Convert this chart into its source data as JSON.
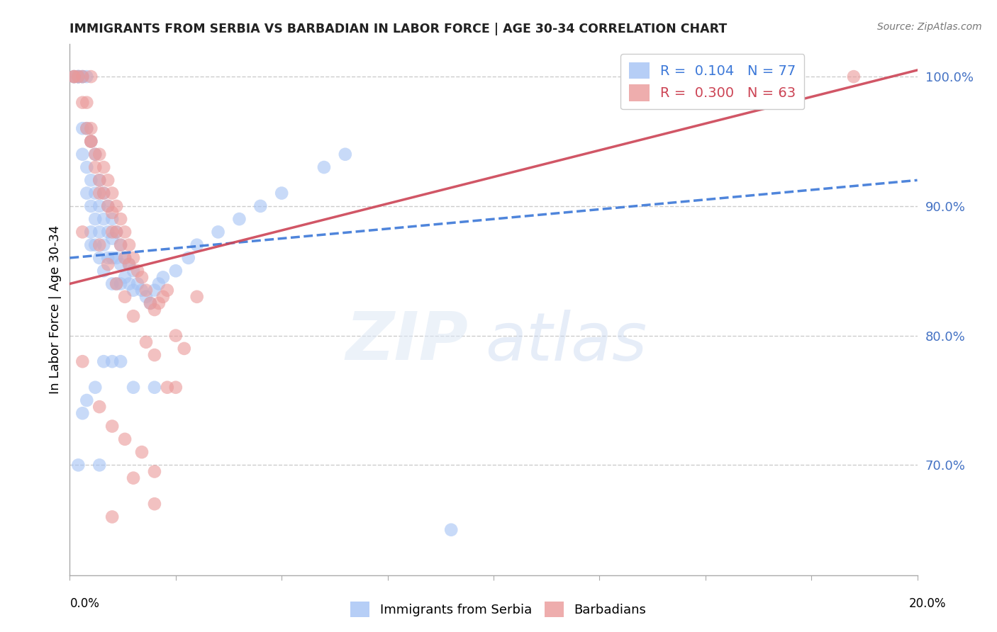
{
  "title": "IMMIGRANTS FROM SERBIA VS BARBADIAN IN LABOR FORCE | AGE 30-34 CORRELATION CHART",
  "source": "Source: ZipAtlas.com",
  "ylabel": "In Labor Force | Age 30-34",
  "right_ytick_labels": [
    "100.0%",
    "90.0%",
    "80.0%",
    "70.0%"
  ],
  "right_ytick_values": [
    1.0,
    0.9,
    0.8,
    0.7
  ],
  "serbia_R": 0.104,
  "serbia_N": 77,
  "barbadian_R": 0.3,
  "barbadian_N": 63,
  "serbia_color": "#a4c2f4",
  "barbadian_color": "#ea9999",
  "serbia_line_color": "#3c78d8",
  "barbadian_line_color": "#cc4455",
  "right_axis_color": "#4472c4",
  "watermark_zip": "ZIP",
  "watermark_atlas": "atlas",
  "xlim": [
    0.0,
    0.2
  ],
  "ylim": [
    0.615,
    1.025
  ],
  "serbia_x": [
    0.001,
    0.001,
    0.002,
    0.002,
    0.002,
    0.002,
    0.003,
    0.003,
    0.003,
    0.003,
    0.004,
    0.004,
    0.004,
    0.004,
    0.005,
    0.005,
    0.005,
    0.005,
    0.005,
    0.006,
    0.006,
    0.006,
    0.006,
    0.007,
    0.007,
    0.007,
    0.007,
    0.008,
    0.008,
    0.008,
    0.008,
    0.009,
    0.009,
    0.009,
    0.01,
    0.01,
    0.01,
    0.01,
    0.011,
    0.011,
    0.011,
    0.012,
    0.012,
    0.012,
    0.013,
    0.013,
    0.014,
    0.014,
    0.015,
    0.015,
    0.016,
    0.017,
    0.018,
    0.019,
    0.02,
    0.021,
    0.022,
    0.025,
    0.028,
    0.03,
    0.035,
    0.04,
    0.045,
    0.05,
    0.06,
    0.065,
    0.01,
    0.008,
    0.006,
    0.004,
    0.003,
    0.002,
    0.09,
    0.02,
    0.015,
    0.012,
    0.007
  ],
  "serbia_y": [
    1.0,
    1.0,
    1.0,
    1.0,
    1.0,
    1.0,
    1.0,
    1.0,
    0.96,
    0.94,
    1.0,
    0.96,
    0.93,
    0.91,
    0.95,
    0.92,
    0.9,
    0.88,
    0.87,
    0.94,
    0.91,
    0.89,
    0.87,
    0.92,
    0.9,
    0.88,
    0.86,
    0.91,
    0.89,
    0.87,
    0.85,
    0.9,
    0.88,
    0.86,
    0.89,
    0.875,
    0.86,
    0.84,
    0.88,
    0.86,
    0.84,
    0.87,
    0.855,
    0.84,
    0.86,
    0.845,
    0.855,
    0.84,
    0.85,
    0.835,
    0.84,
    0.835,
    0.83,
    0.825,
    0.835,
    0.84,
    0.845,
    0.85,
    0.86,
    0.87,
    0.88,
    0.89,
    0.9,
    0.91,
    0.93,
    0.94,
    0.78,
    0.78,
    0.76,
    0.75,
    0.74,
    0.7,
    0.65,
    0.76,
    0.76,
    0.78,
    0.7
  ],
  "barbadian_x": [
    0.001,
    0.001,
    0.002,
    0.003,
    0.003,
    0.004,
    0.004,
    0.005,
    0.005,
    0.005,
    0.006,
    0.006,
    0.007,
    0.007,
    0.007,
    0.008,
    0.008,
    0.009,
    0.009,
    0.01,
    0.01,
    0.01,
    0.011,
    0.011,
    0.012,
    0.012,
    0.013,
    0.013,
    0.014,
    0.014,
    0.015,
    0.016,
    0.017,
    0.018,
    0.019,
    0.02,
    0.021,
    0.022,
    0.023,
    0.025,
    0.027,
    0.03,
    0.005,
    0.003,
    0.007,
    0.009,
    0.011,
    0.013,
    0.015,
    0.018,
    0.02,
    0.025,
    0.003,
    0.007,
    0.01,
    0.013,
    0.017,
    0.02,
    0.185,
    0.023,
    0.01,
    0.015,
    0.02
  ],
  "barbadian_y": [
    1.0,
    1.0,
    1.0,
    1.0,
    0.98,
    0.98,
    0.96,
    0.96,
    0.95,
    1.0,
    0.94,
    0.93,
    0.94,
    0.92,
    0.91,
    0.93,
    0.91,
    0.92,
    0.9,
    0.91,
    0.895,
    0.88,
    0.9,
    0.88,
    0.89,
    0.87,
    0.88,
    0.86,
    0.87,
    0.855,
    0.86,
    0.85,
    0.845,
    0.835,
    0.825,
    0.82,
    0.825,
    0.83,
    0.835,
    0.8,
    0.79,
    0.83,
    0.95,
    0.88,
    0.87,
    0.855,
    0.84,
    0.83,
    0.815,
    0.795,
    0.785,
    0.76,
    0.78,
    0.745,
    0.73,
    0.72,
    0.71,
    0.695,
    1.0,
    0.76,
    0.66,
    0.69,
    0.67
  ],
  "serbia_line": {
    "x0": 0.0,
    "x1": 0.2,
    "y0": 0.86,
    "y1": 0.92
  },
  "barbadian_line": {
    "x0": 0.0,
    "x1": 0.2,
    "y0": 0.84,
    "y1": 1.005
  }
}
